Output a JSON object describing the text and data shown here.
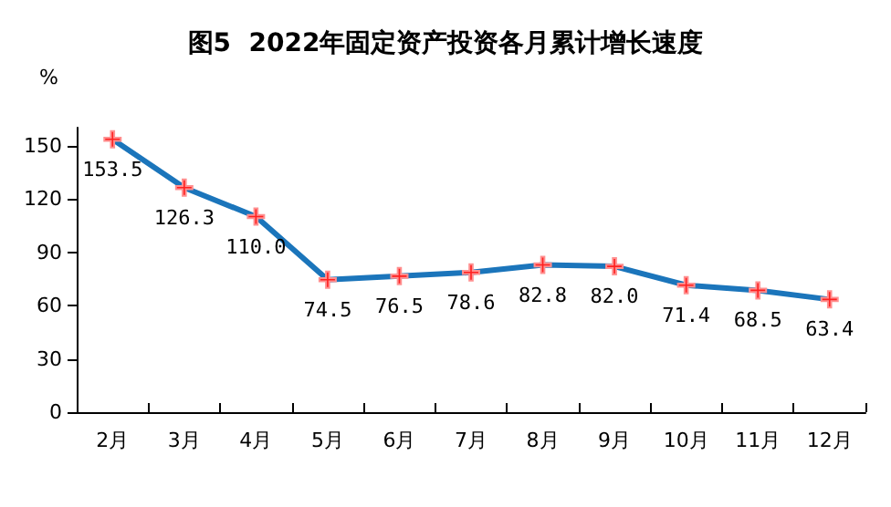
{
  "chart_data": {
    "type": "line",
    "title": "图5  2022年固定资产投资各月累计增长速度",
    "ylabel": "%",
    "categories": [
      "2月",
      "3月",
      "4月",
      "5月",
      "6月",
      "7月",
      "8月",
      "9月",
      "10月",
      "11月",
      "12月"
    ],
    "series": [
      {
        "color": "#1b75bb",
        "values": [
          153.5,
          126.3,
          110.0,
          74.5,
          76.5,
          78.6,
          82.8,
          82.0,
          71.4,
          68.5,
          63.4
        ]
      }
    ],
    "value_labels": [
      "153.5",
      "126.3",
      "110.0",
      "74.5",
      "76.5",
      "78.6",
      "82.8",
      "82.0",
      "71.4",
      "68.5",
      "63.4"
    ],
    "ylim": [
      0,
      160
    ],
    "yticks": [
      0,
      30,
      60,
      90,
      120,
      150
    ],
    "grid": false,
    "marker": "cross",
    "line_style": "solid"
  }
}
